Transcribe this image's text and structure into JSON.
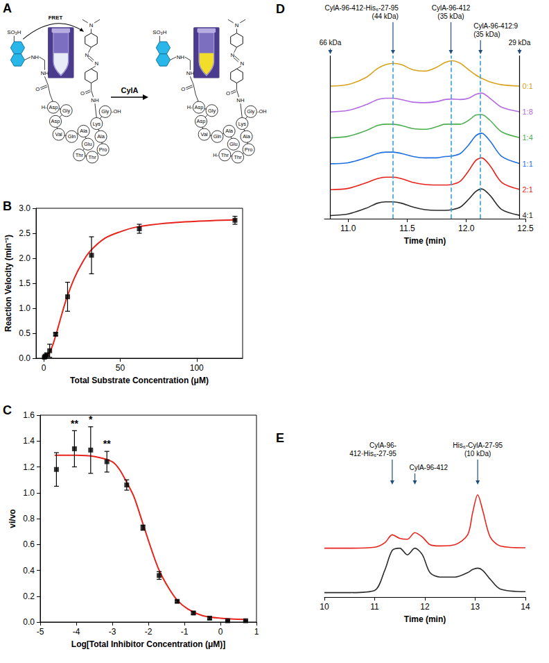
{
  "panel_A": {
    "letter": "A",
    "fret_label": "FRET",
    "enzyme_label": "CylA",
    "donor_atoms": [
      "SO₃H",
      "NH",
      "NH",
      "O"
    ],
    "quencher_atoms": [
      "N",
      "N",
      "N",
      "O",
      "NH"
    ],
    "substrate": {
      "n_term": "H-",
      "residues": [
        "Asp",
        "Gly",
        "Asp",
        "Val",
        "Gln",
        "Ala",
        "Glu",
        "Thr",
        "Thr",
        "Pro",
        "Ala",
        "Lys",
        "Gly"
      ],
      "c_term": "-OH"
    },
    "products": [
      {
        "n_term": "H-",
        "residues": [
          "Asp",
          "Gly",
          "Asp",
          "Val",
          "Gln",
          "Ala",
          "Glu"
        ]
      },
      {
        "n_term": "H-",
        "residues": [
          "Thr",
          "Thr",
          "Pro",
          "Ala",
          "Lys",
          "Gly"
        ],
        "c_term": "-OH"
      }
    ]
  },
  "chart_data": [
    {
      "panel": "B",
      "type": "scatter",
      "x_label": "Total Substrate Concentration (μM)",
      "y_label": "Reaction Velocity (min⁻¹)",
      "xlim": [
        -5,
        130
      ],
      "xticks": [
        0,
        50,
        100
      ],
      "ylim": [
        0,
        3
      ],
      "yticks": [
        {
          "value": 0,
          "label": "0.0"
        },
        0.5,
        {
          "value": 1,
          "label": "1.0"
        },
        1.5,
        {
          "value": 2,
          "label": "2.0"
        },
        2.5,
        {
          "value": 3,
          "label": "3.0"
        }
      ],
      "grid": false,
      "series": [
        {
          "type": "scatter",
          "marker": "square",
          "color": "#000000",
          "x": [
            0.49,
            0.98,
            1.95,
            3.9,
            7.8,
            15.6,
            31.25,
            62.5,
            125
          ],
          "values": [
            0.02,
            0.04,
            0.07,
            0.15,
            0.48,
            1.23,
            2.06,
            2.59,
            2.76
          ],
          "errors": [
            0.01,
            0.01,
            0.02,
            0.13,
            0.03,
            0.29,
            0.37,
            0.09,
            0.08
          ]
        },
        {
          "type": "line",
          "line_style": "solid",
          "color": "#e8231b",
          "x": [
            0,
            2,
            4,
            6,
            8,
            10,
            12,
            15,
            20,
            25,
            30,
            40,
            50,
            60,
            80,
            100,
            126
          ],
          "values": [
            0,
            0.04,
            0.13,
            0.27,
            0.47,
            0.68,
            0.9,
            1.2,
            1.6,
            1.9,
            2.13,
            2.4,
            2.53,
            2.62,
            2.7,
            2.74,
            2.77
          ]
        }
      ]
    },
    {
      "panel": "C",
      "type": "scatter",
      "x_label": "Log[Total Inhibitor Concentration (μM)]",
      "y_label": "vi/vo",
      "xlim": [
        -5,
        1
      ],
      "xticks": [
        -5,
        -4,
        -3,
        -2,
        -1,
        0,
        1
      ],
      "ylim": [
        0,
        1.6
      ],
      "yticks": [
        {
          "value": 0,
          "label": "0.0"
        },
        0.2,
        0.4,
        0.6,
        0.8,
        {
          "value": 1,
          "label": "1.0"
        },
        1.2,
        1.4,
        1.6
      ],
      "grid": false,
      "annotations": [
        {
          "x": -4.05,
          "y": 1.5,
          "text": "**"
        },
        {
          "x": -3.6,
          "y": 1.53,
          "text": "*"
        },
        {
          "x": -3.15,
          "y": 1.34,
          "text": "**"
        }
      ],
      "series": [
        {
          "type": "scatter",
          "marker": "square",
          "color": "#000000",
          "x": [
            -4.55,
            -4.05,
            -3.6,
            -3.15,
            -2.6,
            -2.15,
            -1.7,
            -1.2,
            -0.75,
            -0.3,
            0.2,
            0.7
          ],
          "values": [
            1.18,
            1.34,
            1.33,
            1.24,
            1.06,
            0.73,
            0.36,
            0.16,
            0.07,
            0.03,
            0.01,
            0.01
          ],
          "errors": [
            0.13,
            0.14,
            0.18,
            0.08,
            0.04,
            0.02,
            0.03,
            0.01,
            0.01,
            0.01,
            0.005,
            0.005
          ]
        },
        {
          "type": "line",
          "line_style": "solid",
          "color": "#e8231b",
          "x": [
            -4.6,
            -4.0,
            -3.5,
            -3.0,
            -2.8,
            -2.6,
            -2.4,
            -2.15,
            -1.9,
            -1.7,
            -1.45,
            -1.2,
            -0.9,
            -0.5,
            0,
            0.7
          ],
          "values": [
            1.29,
            1.29,
            1.28,
            1.24,
            1.18,
            1.08,
            0.97,
            0.76,
            0.55,
            0.4,
            0.27,
            0.17,
            0.1,
            0.05,
            0.03,
            0.02
          ]
        }
      ]
    },
    {
      "panel": "D",
      "type": "line",
      "x_label": "Time (min)",
      "xlim": [
        10.8,
        12.5
      ],
      "xticks": [
        {
          "value": 11,
          "label": "11.0"
        },
        11.5,
        {
          "value": 12,
          "label": "12.0"
        },
        12.5
      ],
      "ylim": [
        -0.1,
        6.2
      ],
      "tick_labels": "x",
      "grid": false,
      "x": [
        10.85,
        11.0,
        11.15,
        11.25,
        11.32,
        11.38,
        11.45,
        11.55,
        11.65,
        11.75,
        11.82,
        11.88,
        11.95,
        12.02,
        12.08,
        12.13,
        12.2,
        12.3,
        12.45
      ],
      "series": [
        {
          "name": "0:1",
          "color": "#d9a21b",
          "values": [
            5.02,
            5.08,
            5.35,
            5.7,
            5.85,
            5.9,
            5.85,
            5.65,
            5.6,
            5.75,
            5.93,
            6.0,
            5.9,
            5.65,
            5.45,
            5.32,
            5.18,
            5.07,
            5.02
          ]
        },
        {
          "name": "1:8",
          "color": "#b36ae2",
          "values": [
            4.02,
            4.08,
            4.3,
            4.5,
            4.55,
            4.55,
            4.5,
            4.4,
            4.38,
            4.42,
            4.5,
            4.52,
            4.5,
            4.55,
            4.7,
            4.75,
            4.55,
            4.2,
            4.03
          ]
        },
        {
          "name": "1:4",
          "color": "#4caf50",
          "values": [
            3.02,
            3.08,
            3.3,
            3.5,
            3.55,
            3.55,
            3.5,
            3.38,
            3.35,
            3.45,
            3.55,
            3.55,
            3.55,
            3.7,
            3.9,
            3.92,
            3.7,
            3.25,
            3.03
          ]
        },
        {
          "name": "1:1",
          "color": "#1e6fe0",
          "values": [
            2.02,
            2.06,
            2.25,
            2.42,
            2.47,
            2.47,
            2.42,
            2.3,
            2.25,
            2.25,
            2.3,
            2.32,
            2.42,
            2.75,
            3.1,
            3.2,
            2.9,
            2.3,
            2.03
          ]
        },
        {
          "name": "2:1",
          "color": "#e8231b",
          "values": [
            1.02,
            1.07,
            1.28,
            1.45,
            1.5,
            1.5,
            1.45,
            1.3,
            1.22,
            1.2,
            1.2,
            1.22,
            1.35,
            1.75,
            2.15,
            2.25,
            1.95,
            1.3,
            1.03
          ]
        },
        {
          "name": "4:1",
          "color": "#2b2b2b",
          "values": [
            0.02,
            0.08,
            0.3,
            0.5,
            0.55,
            0.55,
            0.5,
            0.35,
            0.25,
            0.22,
            0.22,
            0.25,
            0.35,
            0.65,
            0.95,
            1.05,
            0.8,
            0.25,
            0.03
          ]
        }
      ],
      "reference_lines": [
        {
          "x": 10.85,
          "label": "66 kDa",
          "line_style": "solid",
          "color": "#000000"
        },
        {
          "x": 12.45,
          "label": "29 kDa",
          "line_style": "solid",
          "color": "#000000"
        },
        {
          "x": 11.38,
          "label": "CylA-96-412◦His₆-27-95 (44 kDa)",
          "line_style": "dashed",
          "color": "#3aa0d8"
        },
        {
          "x": 11.87,
          "label": "CylA-96-412 (35 kDa)",
          "line_style": "dashed",
          "color": "#3aa0d8"
        },
        {
          "x": 12.12,
          "label": "CylA-96-412:9 (35 kDa)",
          "line_style": "dashed",
          "color": "#3aa0d8"
        }
      ]
    },
    {
      "panel": "E",
      "type": "line",
      "x_label": "Time (min)",
      "xlim": [
        10,
        14
      ],
      "xticks": [
        10,
        11,
        12,
        13,
        14
      ],
      "ylim": [
        -0.1,
        2.4
      ],
      "tick_labels": "x",
      "grid": false,
      "x": [
        10.0,
        10.5,
        11.0,
        11.2,
        11.35,
        11.5,
        11.65,
        11.8,
        11.95,
        12.1,
        12.3,
        12.6,
        12.85,
        12.95,
        13.05,
        13.15,
        13.3,
        13.5,
        14.0
      ],
      "series": [
        {
          "color": "#e8231b",
          "values": [
            1.0,
            1.0,
            1.02,
            1.12,
            1.3,
            1.22,
            1.2,
            1.35,
            1.25,
            1.08,
            1.05,
            1.08,
            1.3,
            1.8,
            2.2,
            1.85,
            1.25,
            1.05,
            1.01
          ]
        },
        {
          "color": "#2b2b2b",
          "values": [
            0.0,
            0.0,
            0.05,
            0.5,
            0.95,
            1.0,
            0.85,
            1.0,
            0.85,
            0.45,
            0.35,
            0.35,
            0.45,
            0.52,
            0.55,
            0.5,
            0.3,
            0.08,
            0.02
          ]
        }
      ],
      "annotations": [
        {
          "x": 11.35,
          "text": "CylA-96-412◦His₆-27-95"
        },
        {
          "x": 11.8,
          "text": "CylA-96-412"
        },
        {
          "x": 13.05,
          "text": "His₆-CylA-27-95 (10 kDa)"
        }
      ]
    }
  ]
}
